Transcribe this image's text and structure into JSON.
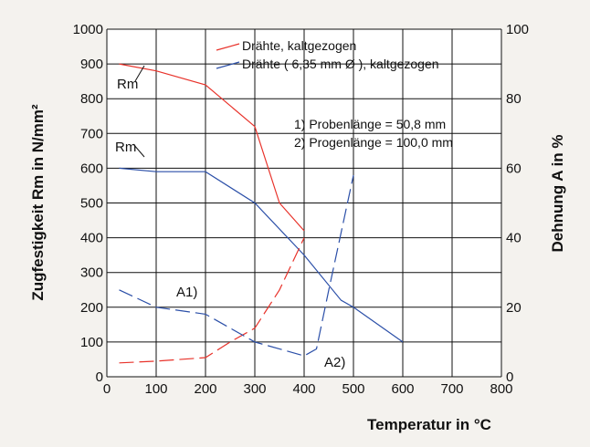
{
  "chart_data": {
    "type": "line",
    "xlabel": "Temperatur in °C",
    "ylabel_left": "Zugfestigkeit  Rm in N/mm²",
    "ylabel_right": "Dehnung  A  in %",
    "xlim": [
      0,
      800
    ],
    "ylim_left": [
      0,
      1000
    ],
    "ylim_right": [
      0,
      100
    ],
    "x_ticks": [
      0,
      100,
      200,
      300,
      400,
      500,
      600,
      700,
      800
    ],
    "y_ticks_left": [
      0,
      100,
      200,
      300,
      400,
      500,
      600,
      700,
      800,
      900,
      1000
    ],
    "y_ticks_right": [
      0,
      20,
      40,
      60,
      80,
      100
    ],
    "grid": true,
    "legend_position": "top-right",
    "colors": {
      "red": "#e8322a",
      "blue": "#2b4fa8",
      "grid": "#111111",
      "background": "#ffffff"
    },
    "notes": [
      "1) Probenlänge =   50,8 mm",
      "2) Progenlänge = 100,0 mm"
    ],
    "labels": {
      "rm_red": "Rm",
      "rm_blue": "Rm",
      "a1": "A1)",
      "a2": "A2)"
    },
    "series": [
      {
        "name": "Drähte, kaltgezogen",
        "kind": "Rm",
        "axis": "left",
        "style": "solid",
        "color": "#e8322a",
        "x": [
          25,
          100,
          200,
          300,
          350,
          400
        ],
        "values": [
          900,
          880,
          840,
          720,
          500,
          420
        ]
      },
      {
        "name": "Drähte ( 6,35 mm Ø ), kaltgezogen",
        "kind": "Rm",
        "axis": "left",
        "style": "solid",
        "color": "#2b4fa8",
        "x": [
          25,
          100,
          200,
          300,
          400,
          475,
          500,
          600
        ],
        "values": [
          600,
          590,
          590,
          500,
          350,
          220,
          200,
          100
        ]
      },
      {
        "kind": "A",
        "axis": "right",
        "style": "dashed",
        "color": "#e8322a",
        "x": [
          25,
          100,
          200,
          250,
          300,
          350,
          400
        ],
        "values": [
          4,
          4.5,
          5.5,
          10,
          14,
          25,
          40
        ]
      },
      {
        "kind": "A",
        "axis": "right",
        "style": "dashed",
        "color": "#2b4fa8",
        "x": [
          25,
          100,
          200,
          300,
          400,
          425,
          450,
          500
        ],
        "values": [
          25,
          20,
          18,
          10,
          6,
          8,
          25,
          58
        ]
      }
    ]
  }
}
